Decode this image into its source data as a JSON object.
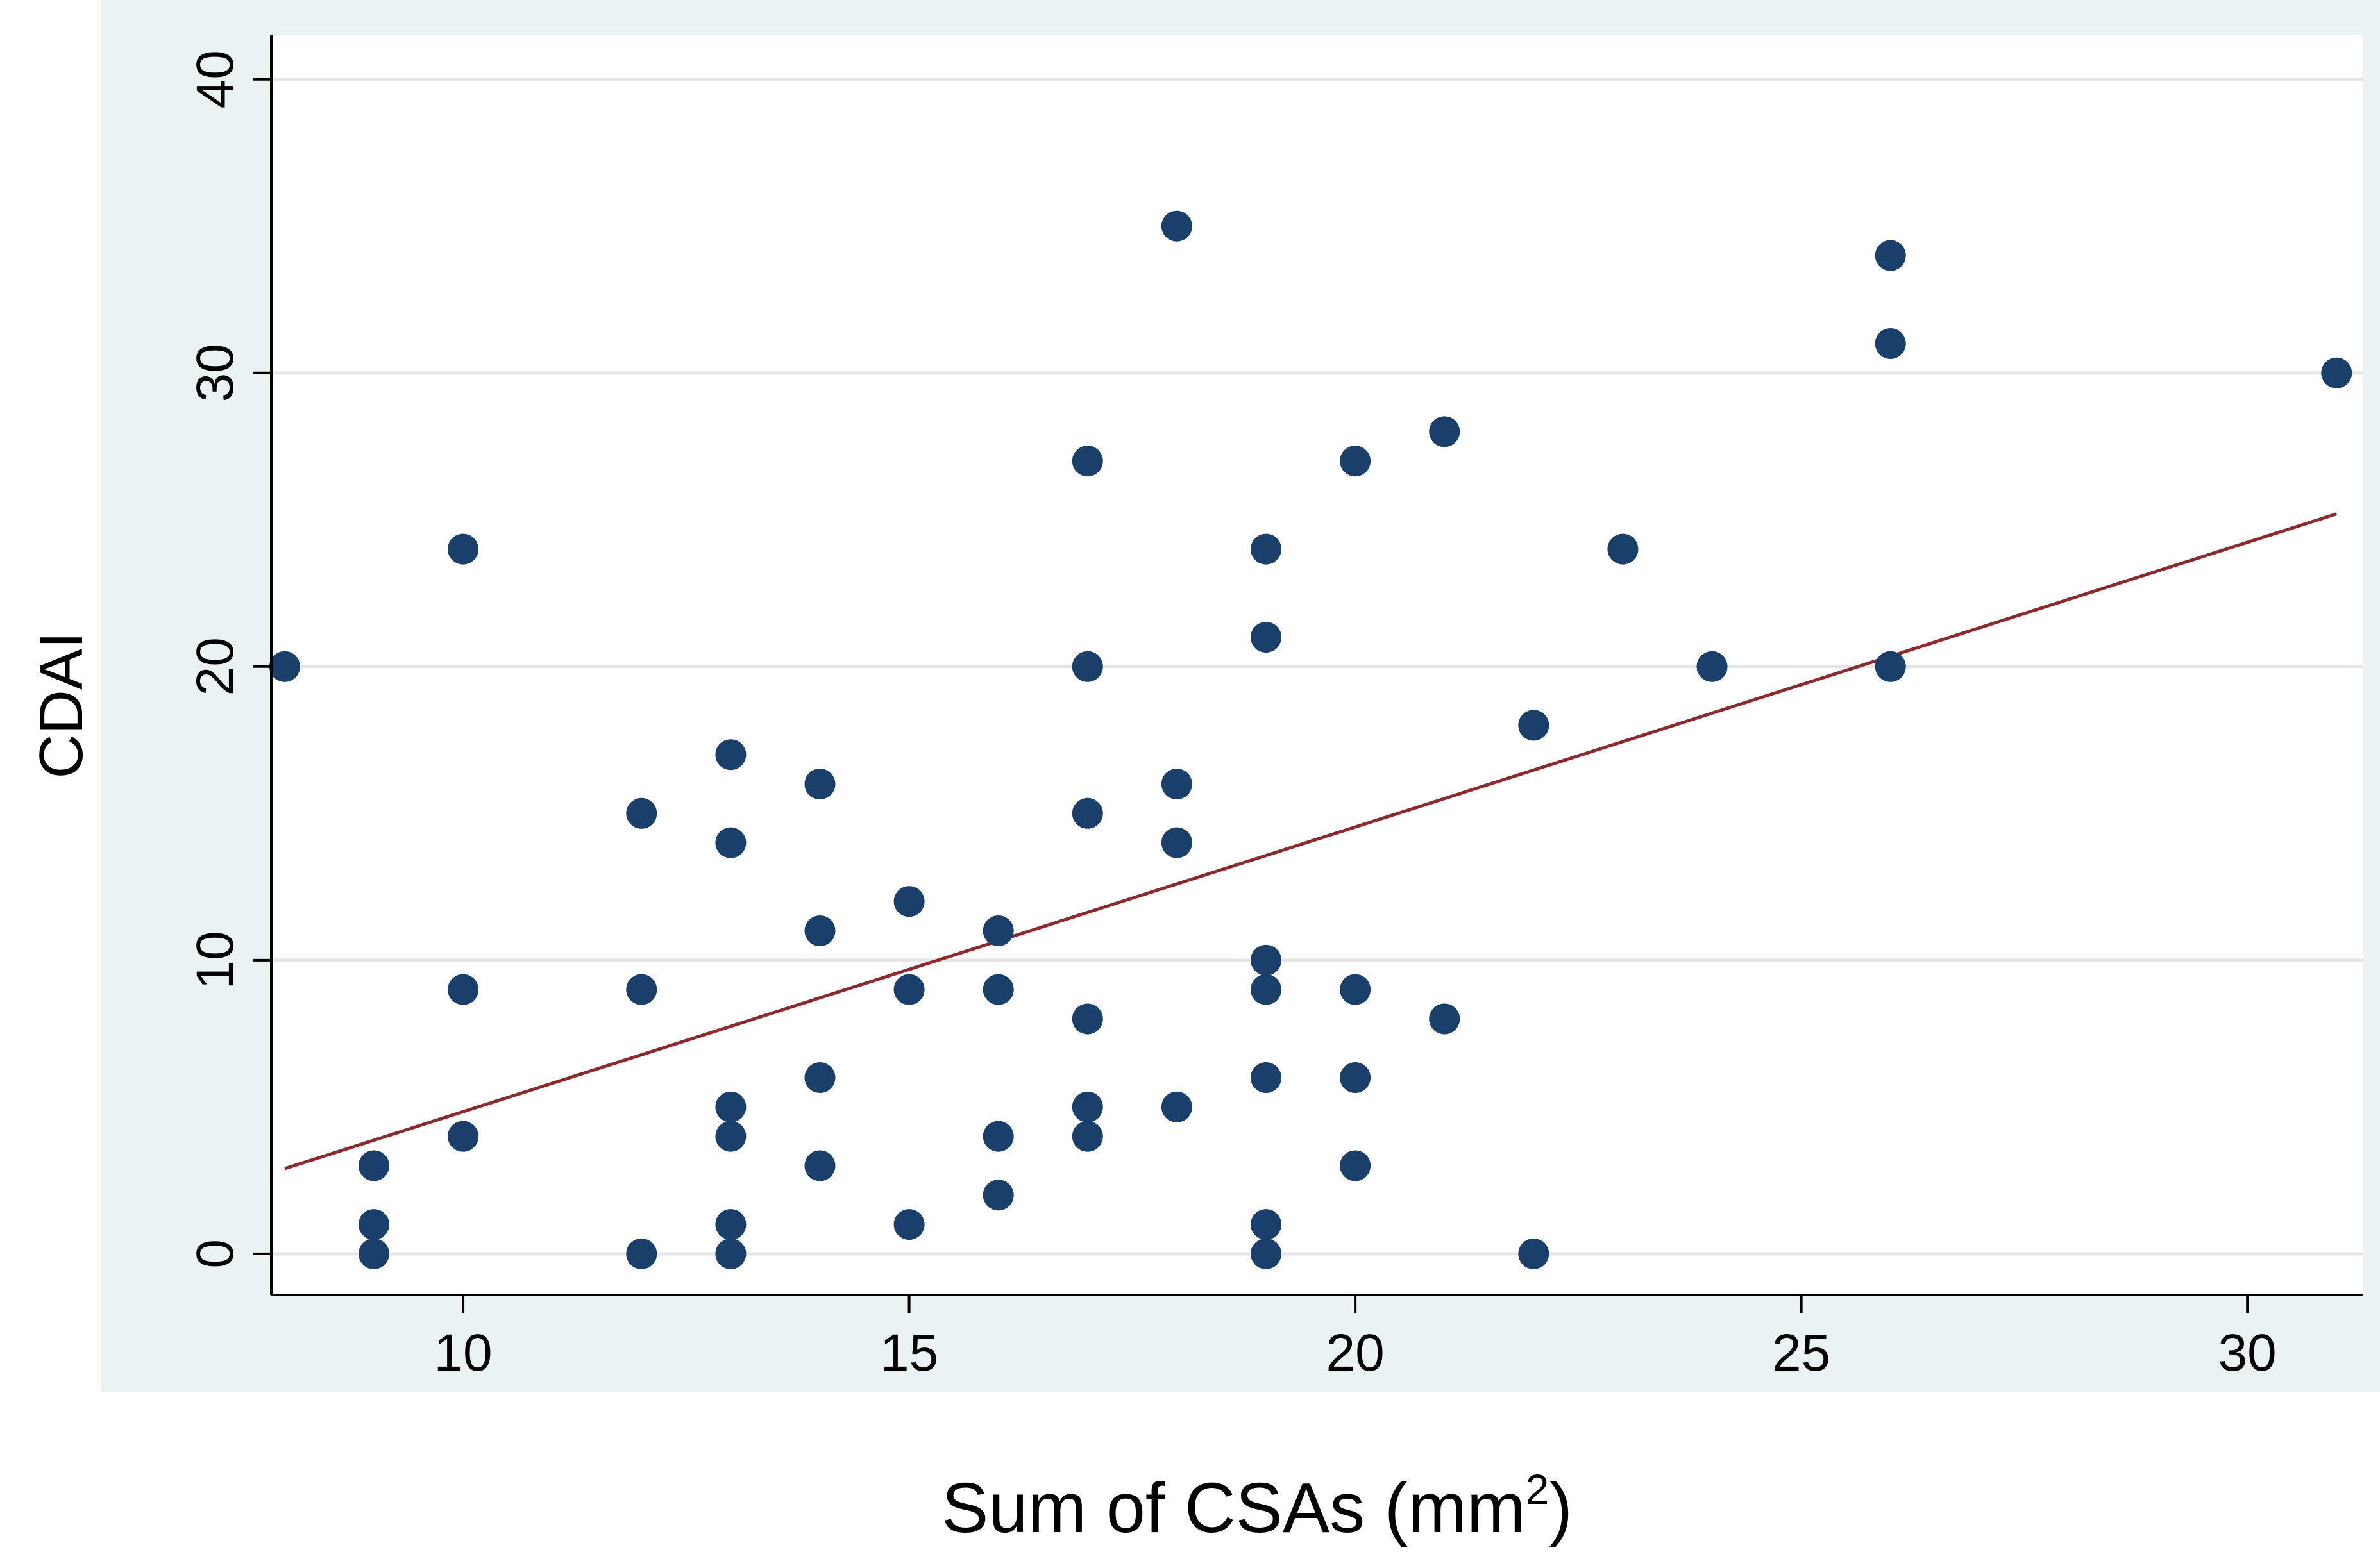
{
  "chart_data": {
    "type": "scatter",
    "title": "",
    "xlabel": "Sum of CSAs (mm",
    "xlabel_sup": "2",
    "xlabel_close": ")",
    "ylabel": "CDAI",
    "xlim": [
      7.85,
      31.3
    ],
    "ylim": [
      -1.4,
      41.5
    ],
    "xticks": [
      "10",
      "15",
      "20",
      "25",
      "30"
    ],
    "yticks": [
      "0",
      "10",
      "20",
      "30",
      "40"
    ],
    "grid": true,
    "legend": "none",
    "colors": {
      "plot_background": "#ffffff",
      "outer_background": "#eaf2f3",
      "points": "#1b3f6b",
      "fit_line": "#8b2b2e",
      "gridlines": "#e6e6e6",
      "axis": "#000000"
    },
    "series": [
      {
        "x": [
          8,
          9,
          9,
          9,
          10,
          10,
          10,
          12,
          12,
          12,
          13,
          13,
          13,
          13,
          13,
          13,
          14,
          14,
          14,
          14,
          15,
          15,
          15,
          16,
          16,
          16,
          16,
          17,
          17,
          17,
          17,
          17,
          17,
          18,
          18,
          18,
          18,
          19,
          19,
          19,
          19,
          19,
          19,
          19,
          20,
          20,
          20,
          20,
          21,
          21,
          22,
          22,
          23,
          24,
          26,
          26,
          26,
          31
        ],
        "y": [
          20,
          3,
          1,
          0,
          24,
          9,
          4,
          15,
          9,
          0,
          17,
          14,
          5,
          4,
          1,
          0,
          16,
          11,
          6,
          3,
          12,
          9,
          1,
          11,
          9,
          4,
          2,
          27,
          20,
          15,
          8,
          5,
          4,
          35,
          16,
          14,
          5,
          24,
          21,
          10,
          9,
          6,
          1,
          0,
          27,
          9,
          6,
          3,
          28,
          8,
          18,
          0,
          24,
          20,
          34,
          31,
          20,
          30
        ]
      }
    ],
    "fit_line": {
      "x": [
        8,
        31
      ],
      "y": [
        2.9,
        25.2
      ]
    }
  }
}
